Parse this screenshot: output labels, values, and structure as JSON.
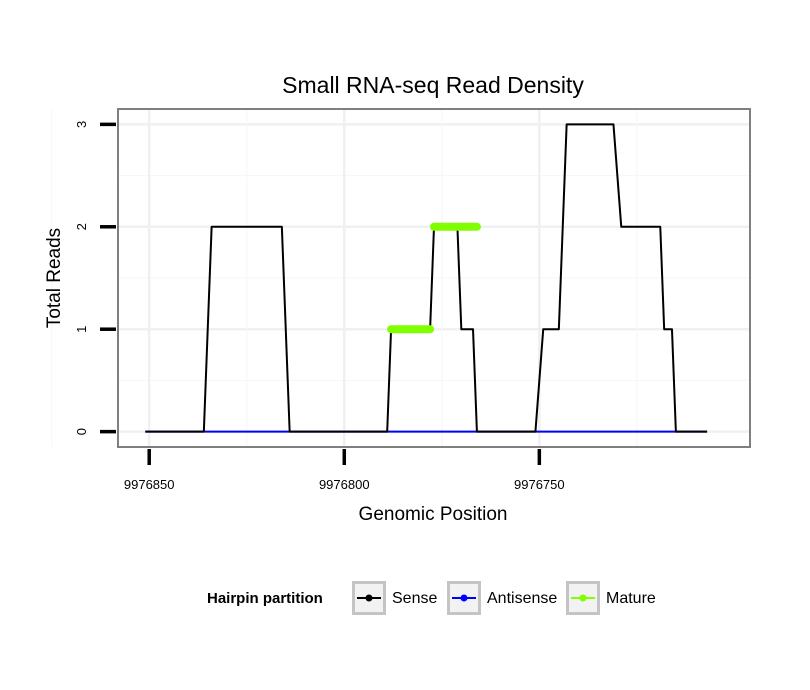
{
  "chart_data": {
    "type": "line",
    "title": "Small RNA-seq Read Density",
    "xlabel": "Genomic Position",
    "ylabel": "Total Reads",
    "x_reversed": true,
    "xlim": [
      9976858,
      9976696
    ],
    "ylim": [
      -0.15,
      3.15
    ],
    "x_ticks": [
      {
        "value": 9976850,
        "label": "9976850"
      },
      {
        "value": 9976800,
        "label": "9976800"
      },
      {
        "value": 9976750,
        "label": "9976750"
      }
    ],
    "y_ticks": [
      {
        "value": 0,
        "label": "0"
      },
      {
        "value": 1,
        "label": "1"
      },
      {
        "value": 2,
        "label": "2"
      },
      {
        "value": 3,
        "label": "3"
      }
    ],
    "grid": true,
    "legend": {
      "title": "Hairpin partition",
      "placement": "bottom",
      "entries": [
        {
          "name": "Sense",
          "color": "#000000"
        },
        {
          "name": "Antisense",
          "color": "#0000ff"
        },
        {
          "name": "Mature",
          "color": "#7fff00"
        }
      ]
    },
    "series": [
      {
        "name": "Sense",
        "color": "#000000",
        "x": [
          9976851,
          9976836,
          9976834,
          9976816,
          9976814,
          9976789,
          9976788,
          9976778,
          9976777,
          9976771,
          9976770,
          9976767,
          9976766,
          9976751,
          9976749,
          9976745,
          9976743,
          9976731,
          9976729,
          9976719,
          9976718,
          9976716,
          9976715,
          9976707
        ],
        "values": [
          0,
          0,
          2,
          2,
          0,
          0,
          1,
          1,
          2,
          2,
          1,
          1,
          0,
          0,
          1,
          1,
          3,
          3,
          2,
          2,
          1,
          1,
          0,
          0
        ]
      },
      {
        "name": "Antisense",
        "color": "#0000ff",
        "x": [
          9976851,
          9976707
        ],
        "values": [
          0,
          0
        ]
      },
      {
        "name": "Mature",
        "color": "#7fff00",
        "segments": [
          {
            "x": [
              9976788,
              9976778
            ],
            "value": 1
          },
          {
            "x": [
              9976777,
              9976766
            ],
            "value": 2
          }
        ]
      }
    ]
  }
}
